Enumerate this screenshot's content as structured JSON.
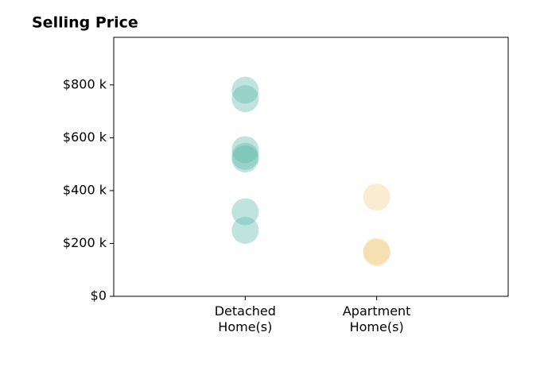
{
  "chart_data": {
    "type": "strip",
    "title": "Selling Price",
    "categories": [
      "Detached Home(s)",
      "Apartment Home(s)"
    ],
    "values": [
      [
        780000,
        748000,
        555000,
        530000,
        520000,
        320000,
        250000
      ],
      [
        375000,
        170000,
        165000
      ]
    ],
    "colors": [
      "#5fb8ab",
      "#f0d08a"
    ],
    "ylim": [
      0,
      980000
    ],
    "yticks": [
      {
        "value": 0,
        "label": "$0"
      },
      {
        "value": 200000,
        "label": "$200 k"
      },
      {
        "value": 400000,
        "label": "$400 k"
      },
      {
        "value": 600000,
        "label": "$600 k"
      },
      {
        "value": 800000,
        "label": "$800 k"
      }
    ],
    "grid": false
  }
}
